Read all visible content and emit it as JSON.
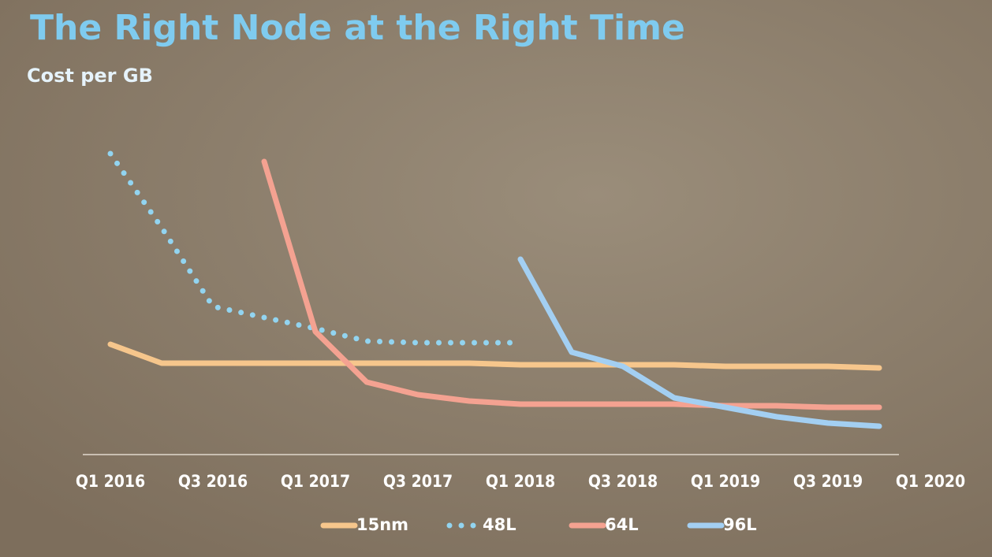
{
  "chart_data": {
    "type": "line",
    "title": "The Right Node at the Right Time",
    "subtitle": "Cost per GB",
    "categories": [
      "Q1 2016",
      null,
      "Q3 2016",
      null,
      "Q1 2017",
      null,
      "Q3 2017",
      null,
      "Q1 2018",
      null,
      "Q3 2018",
      null,
      "Q1 2019",
      null,
      "Q3 2019",
      null,
      "Q1 2020"
    ],
    "ylim": [
      0,
      100
    ],
    "series": [
      {
        "name": "15nm",
        "color": "#f6c68c",
        "style": "solid",
        "values": [
          35,
          29,
          29,
          29,
          29,
          29,
          29,
          29,
          28.5,
          28.5,
          28.5,
          28.5,
          28,
          28,
          28,
          27.5,
          null
        ]
      },
      {
        "name": "48L",
        "color": "#92d4f0",
        "style": "dotted",
        "values": [
          95.5,
          72,
          47,
          43.5,
          40,
          36,
          35.5,
          35.5,
          35.5,
          null,
          null,
          null,
          null,
          null,
          null,
          null,
          null
        ]
      },
      {
        "name": "64L",
        "color": "#f4a291",
        "style": "solid",
        "values": [
          null,
          null,
          null,
          93,
          39,
          23,
          19,
          17,
          16,
          16,
          16,
          16,
          15.5,
          15.5,
          15,
          15,
          null
        ]
      },
      {
        "name": "96L",
        "color": "#a3cff2",
        "style": "solid",
        "values": [
          null,
          null,
          null,
          null,
          null,
          null,
          null,
          null,
          62,
          32.5,
          28,
          18,
          15,
          12,
          10,
          9,
          null
        ]
      }
    ]
  }
}
